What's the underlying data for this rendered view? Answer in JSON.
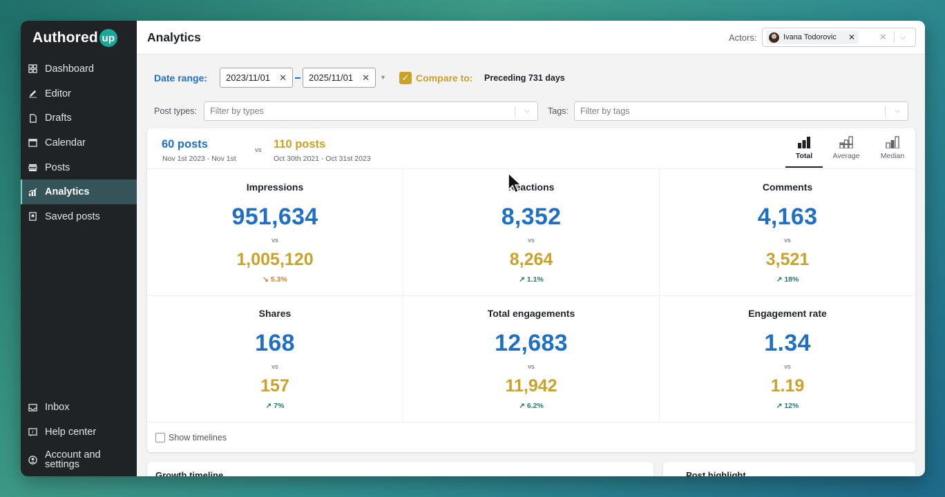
{
  "app": {
    "brand": "Authored",
    "brand_badge": "up"
  },
  "sidebar": {
    "items": [
      {
        "label": "Dashboard",
        "icon": "dashboard-icon"
      },
      {
        "label": "Editor",
        "icon": "pencil-icon"
      },
      {
        "label": "Drafts",
        "icon": "document-icon"
      },
      {
        "label": "Calendar",
        "icon": "calendar-icon"
      },
      {
        "label": "Posts",
        "icon": "posts-icon"
      },
      {
        "label": "Analytics",
        "icon": "analytics-icon",
        "active": true
      },
      {
        "label": "Saved posts",
        "icon": "bookmark-icon"
      }
    ],
    "bottom_items": [
      {
        "label": "Inbox",
        "icon": "inbox-icon"
      },
      {
        "label": "Help center",
        "icon": "help-icon"
      },
      {
        "label": "Account and settings",
        "icon": "account-icon"
      }
    ]
  },
  "header": {
    "title": "Analytics",
    "actors_label": "Actors:",
    "actor_name": "Ivana Todorovic"
  },
  "filters": {
    "date_range_label": "Date range:",
    "date_from": "2023/11/01",
    "date_to": "2025/11/01",
    "compare_label": "Compare to:",
    "compare_checked": true,
    "compare_value": "Preceding 731 days",
    "post_types_label": "Post types:",
    "post_types_placeholder": "Filter by types",
    "tags_label": "Tags:",
    "tags_placeholder": "Filter by tags"
  },
  "summary": {
    "current_posts": "60 posts",
    "current_range": "Nov 1st 2023 - Nov 1st",
    "vs": "vs",
    "compare_posts": "110 posts",
    "compare_range": "Oct 30th 2021 - Oct 31st 2023"
  },
  "view_tabs": [
    {
      "label": "Total",
      "active": true
    },
    {
      "label": "Average",
      "active": false
    },
    {
      "label": "Median",
      "active": false
    }
  ],
  "metrics": [
    {
      "name": "Impressions",
      "value": "951,634",
      "vs": "vs",
      "compare": "1,005,120",
      "change": "↘ 5.3%",
      "direction": "down"
    },
    {
      "name": "Reactions",
      "value": "8,352",
      "vs": "vs",
      "compare": "8,264",
      "change": "↗ 1.1%",
      "direction": "up"
    },
    {
      "name": "Comments",
      "value": "4,163",
      "vs": "vs",
      "compare": "3,521",
      "change": "↗ 18%",
      "direction": "up"
    },
    {
      "name": "Shares",
      "value": "168",
      "vs": "vs",
      "compare": "157",
      "change": "↗ 7%",
      "direction": "up"
    },
    {
      "name": "Total engagements",
      "value": "12,683",
      "vs": "vs",
      "compare": "11,942",
      "change": "↗ 6.2%",
      "direction": "up"
    },
    {
      "name": "Engagement rate",
      "value": "1.34",
      "vs": "vs",
      "compare": "1.19",
      "change": "↗ 12%",
      "direction": "up"
    }
  ],
  "timelines": {
    "label": "Show timelines",
    "checked": false
  },
  "bottom_panels": {
    "growth_title": "Growth timeline",
    "highlight_title": "Post highlight"
  },
  "colors": {
    "primary": "#1f6fc4",
    "compare": "#c9a227",
    "up": "#1f7a6b",
    "down": "#d2822a",
    "sidebar": "#1f2326"
  }
}
